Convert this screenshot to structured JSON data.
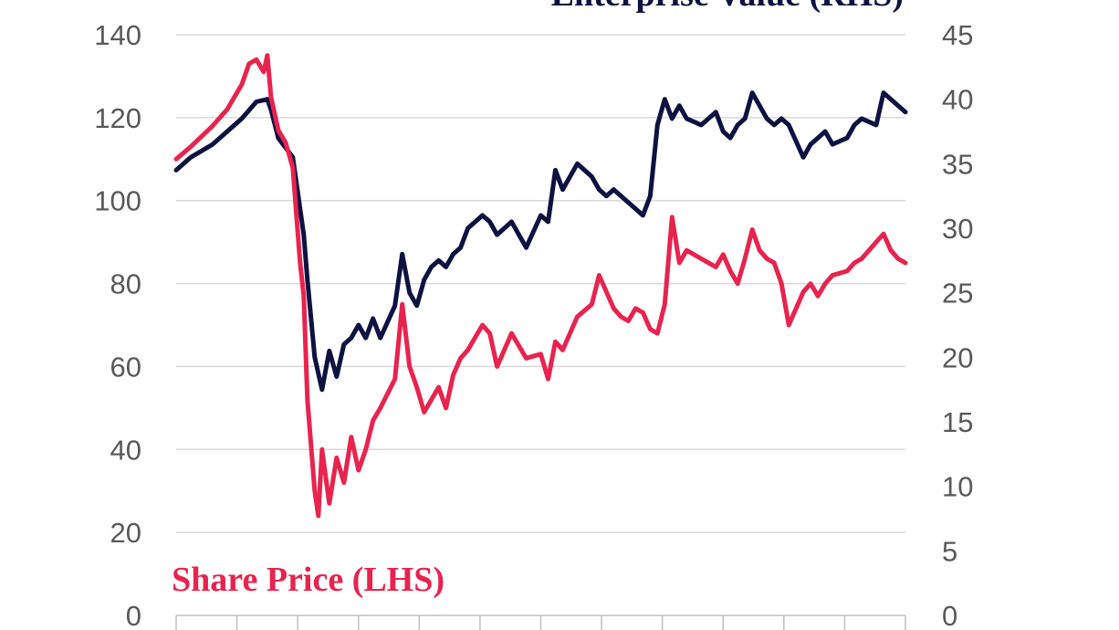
{
  "chart_data": {
    "type": "line",
    "title": "",
    "xlabel": "",
    "grid": true,
    "x_ticks_count": 13,
    "left_axis": {
      "ylabel": "",
      "ylim": [
        0,
        140
      ],
      "ticks": [
        "0",
        "20",
        "40",
        "60",
        "80",
        "100",
        "120",
        "140"
      ]
    },
    "right_axis": {
      "ylabel": "",
      "ylim": [
        0,
        45
      ],
      "ticks": [
        "0",
        "5",
        "10",
        "15",
        "20",
        "25",
        "30",
        "35",
        "40",
        "45"
      ]
    },
    "series": [
      {
        "name": "Enterprise Value (RHS)",
        "axis": "right",
        "color": "#0d1240",
        "x": [
          0,
          0.02,
          0.05,
          0.07,
          0.09,
          0.11,
          0.125,
          0.13,
          0.14,
          0.16,
          0.175,
          0.18,
          0.19,
          0.2,
          0.21,
          0.22,
          0.23,
          0.24,
          0.25,
          0.26,
          0.27,
          0.28,
          0.3,
          0.31,
          0.32,
          0.33,
          0.34,
          0.35,
          0.36,
          0.37,
          0.38,
          0.39,
          0.4,
          0.42,
          0.43,
          0.44,
          0.46,
          0.48,
          0.5,
          0.51,
          0.52,
          0.53,
          0.55,
          0.57,
          0.58,
          0.59,
          0.6,
          0.61,
          0.62,
          0.63,
          0.64,
          0.65,
          0.66,
          0.67,
          0.68,
          0.69,
          0.7,
          0.72,
          0.74,
          0.75,
          0.76,
          0.77,
          0.78,
          0.79,
          0.8,
          0.81,
          0.82,
          0.83,
          0.84,
          0.86,
          0.87,
          0.88,
          0.89,
          0.9,
          0.92,
          0.93,
          0.94,
          0.96,
          0.97,
          0.98,
          0.99,
          1.0
        ],
        "values": [
          34.5,
          35.5,
          36.5,
          37.5,
          38.5,
          39.8,
          40.0,
          39.2,
          37.0,
          35.5,
          29.5,
          26.0,
          20.0,
          17.5,
          20.5,
          18.5,
          21.0,
          21.5,
          22.5,
          21.5,
          23.0,
          21.5,
          24.0,
          28.0,
          25.0,
          24.0,
          26.0,
          27.0,
          27.5,
          27.0,
          28.0,
          28.5,
          30.0,
          31.0,
          30.5,
          29.5,
          30.5,
          28.5,
          31.0,
          30.5,
          34.5,
          33.0,
          35.0,
          34.0,
          33.0,
          32.5,
          33.0,
          32.5,
          32.0,
          31.5,
          31.0,
          32.5,
          38.0,
          40.0,
          38.5,
          39.5,
          38.5,
          38.0,
          39.0,
          37.5,
          37.0,
          38.0,
          38.5,
          40.5,
          39.5,
          38.5,
          38.0,
          38.5,
          38.0,
          35.5,
          36.5,
          37.0,
          37.5,
          36.5,
          37.0,
          38.0,
          38.5,
          38.0,
          40.5,
          40.0,
          39.5,
          39.0
        ]
      },
      {
        "name": "Share Price (LHS)",
        "axis": "left",
        "color": "#e8234f",
        "x": [
          0,
          0.02,
          0.05,
          0.07,
          0.09,
          0.1,
          0.11,
          0.12,
          0.125,
          0.13,
          0.14,
          0.15,
          0.16,
          0.17,
          0.175,
          0.18,
          0.19,
          0.195,
          0.2,
          0.21,
          0.22,
          0.23,
          0.24,
          0.25,
          0.26,
          0.27,
          0.28,
          0.3,
          0.31,
          0.32,
          0.33,
          0.34,
          0.35,
          0.36,
          0.37,
          0.38,
          0.39,
          0.4,
          0.42,
          0.43,
          0.44,
          0.46,
          0.48,
          0.5,
          0.51,
          0.52,
          0.53,
          0.55,
          0.57,
          0.58,
          0.59,
          0.6,
          0.61,
          0.62,
          0.63,
          0.64,
          0.65,
          0.66,
          0.67,
          0.68,
          0.69,
          0.7,
          0.72,
          0.74,
          0.75,
          0.76,
          0.77,
          0.78,
          0.79,
          0.8,
          0.81,
          0.82,
          0.83,
          0.84,
          0.86,
          0.87,
          0.88,
          0.89,
          0.9,
          0.92,
          0.93,
          0.94,
          0.96,
          0.97,
          0.98,
          0.99,
          1.0
        ],
        "values": [
          110,
          113,
          118,
          122,
          128,
          133,
          134,
          131,
          135,
          125,
          117,
          114,
          108,
          85,
          77,
          52,
          30,
          24,
          40,
          27,
          38,
          32,
          43,
          35,
          40,
          47,
          50,
          57,
          75,
          60,
          55,
          49,
          52,
          55,
          50,
          58,
          62,
          64,
          70,
          68,
          60,
          68,
          62,
          63,
          57,
          66,
          64,
          72,
          75,
          82,
          78,
          74,
          72,
          71,
          74,
          73,
          69,
          68,
          75,
          96,
          85,
          88,
          86,
          84,
          87,
          83,
          80,
          86,
          93,
          88,
          86,
          85,
          80,
          70,
          78,
          80,
          77,
          80,
          82,
          83,
          85,
          86,
          90,
          92,
          88,
          86,
          85
        ]
      }
    ]
  }
}
